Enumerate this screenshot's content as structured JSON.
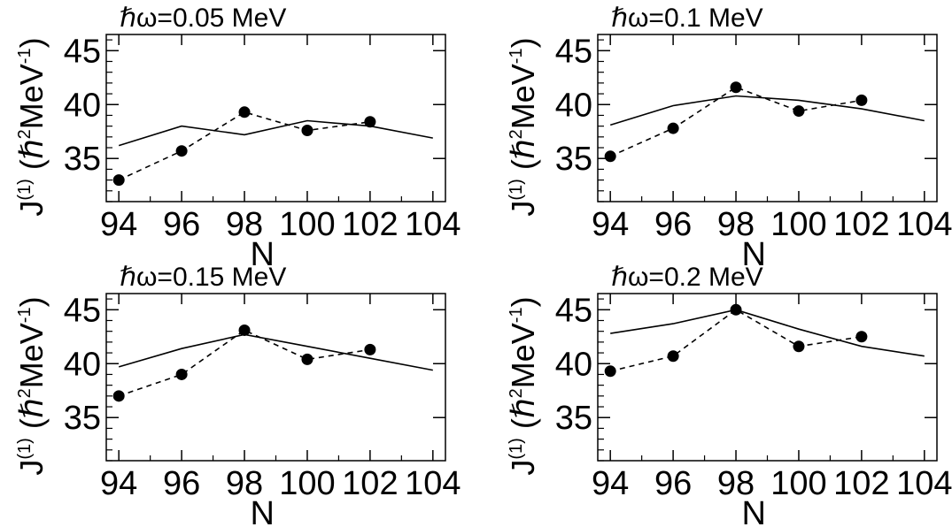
{
  "chart_data": [
    {
      "type": "line",
      "title": "ℏω=0.05 MeV",
      "xlabel": "N",
      "ylabel": "J(1) (ℏ2MeV-1)",
      "x_ticks": [
        94,
        96,
        98,
        100,
        102,
        104
      ],
      "y_ticks": [
        35,
        40,
        45
      ],
      "xlim": [
        93.6,
        104.4
      ],
      "ylim": [
        31,
        46.5
      ],
      "series": [
        {
          "style": "solid",
          "marker": "none",
          "color": "#000000",
          "x": [
            94,
            96,
            98,
            100,
            102,
            104
          ],
          "y": [
            36.2,
            38.0,
            37.2,
            38.5,
            38.0,
            36.9
          ]
        },
        {
          "style": "dashed",
          "marker": "circle",
          "color": "#000000",
          "x": [
            94,
            96,
            98,
            100,
            102
          ],
          "y": [
            33.0,
            35.7,
            39.3,
            37.6,
            38.4
          ]
        }
      ]
    },
    {
      "type": "line",
      "title": "ℏω=0.1 MeV",
      "xlabel": "N",
      "ylabel": "J(1) (ℏ2MeV-1)",
      "x_ticks": [
        94,
        96,
        98,
        100,
        102,
        104
      ],
      "y_ticks": [
        35,
        40,
        45
      ],
      "xlim": [
        93.6,
        104.4
      ],
      "ylim": [
        31,
        46.5
      ],
      "series": [
        {
          "style": "solid",
          "marker": "none",
          "color": "#000000",
          "x": [
            94,
            96,
            98,
            100,
            102,
            104
          ],
          "y": [
            38.1,
            39.9,
            40.8,
            40.4,
            39.6,
            38.5
          ]
        },
        {
          "style": "dashed",
          "marker": "circle",
          "color": "#000000",
          "x": [
            94,
            96,
            98,
            100,
            102
          ],
          "y": [
            35.2,
            37.8,
            41.6,
            39.4,
            40.4
          ]
        }
      ]
    },
    {
      "type": "line",
      "title": "ℏω=0.15 MeV",
      "xlabel": "N",
      "ylabel": "J(1) (ℏ2MeV-1)",
      "x_ticks": [
        94,
        96,
        98,
        100,
        102,
        104
      ],
      "y_ticks": [
        35,
        40,
        45
      ],
      "xlim": [
        93.6,
        104.4
      ],
      "ylim": [
        31,
        46.5
      ],
      "series": [
        {
          "style": "solid",
          "marker": "none",
          "color": "#000000",
          "x": [
            94,
            96,
            98,
            100,
            102,
            104
          ],
          "y": [
            39.7,
            41.4,
            42.7,
            41.6,
            40.5,
            39.4
          ]
        },
        {
          "style": "dashed",
          "marker": "circle",
          "color": "#000000",
          "x": [
            94,
            96,
            98,
            100,
            102
          ],
          "y": [
            37.0,
            39.0,
            43.1,
            40.4,
            41.3
          ]
        }
      ]
    },
    {
      "type": "line",
      "title": "ℏω=0.2 MeV",
      "xlabel": "N",
      "ylabel": "J(1) (ℏ2MeV-1)",
      "x_ticks": [
        94,
        96,
        98,
        100,
        102,
        104
      ],
      "y_ticks": [
        35,
        40,
        45
      ],
      "xlim": [
        93.6,
        104.4
      ],
      "ylim": [
        31,
        46.5
      ],
      "series": [
        {
          "style": "solid",
          "marker": "none",
          "color": "#000000",
          "x": [
            94,
            96,
            98,
            100,
            102,
            104
          ],
          "y": [
            42.8,
            43.7,
            45.0,
            43.2,
            41.6,
            40.7
          ]
        },
        {
          "style": "dashed",
          "marker": "circle",
          "color": "#000000",
          "x": [
            94,
            96,
            98,
            100,
            102
          ],
          "y": [
            39.3,
            40.7,
            45.0,
            41.6,
            42.5
          ]
        }
      ]
    }
  ]
}
